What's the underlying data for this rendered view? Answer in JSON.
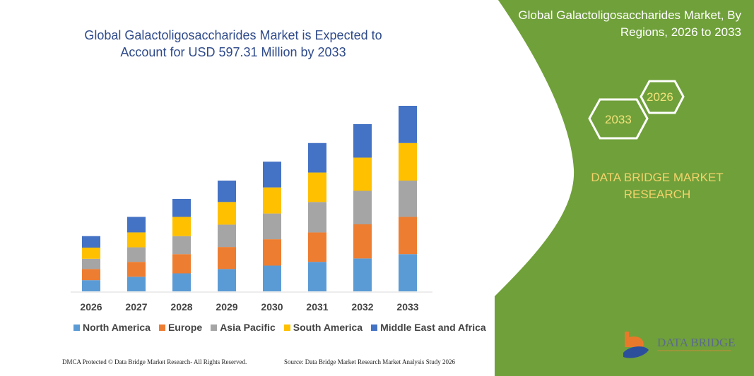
{
  "chart_data": {
    "type": "bar",
    "stacked": true,
    "title": "Global Galactoligosaccharides Market is Expected to Account for USD 597.31 Million by 2033",
    "categories": [
      "2026",
      "2027",
      "2028",
      "2029",
      "2030",
      "2031",
      "2032",
      "2033"
    ],
    "series": [
      {
        "name": "North America",
        "color": "#5b9bd5",
        "values": [
          36,
          47,
          58,
          72,
          83,
          95,
          106,
          120
        ]
      },
      {
        "name": "Europe",
        "color": "#ed7d31",
        "values": [
          36,
          48,
          62,
          71,
          85,
          95,
          110,
          120
        ]
      },
      {
        "name": "Asia Pacific",
        "color": "#a5a5a5",
        "values": [
          33,
          47,
          58,
          72,
          83,
          98,
          108,
          117
        ]
      },
      {
        "name": "South America",
        "color": "#ffc000",
        "values": [
          36,
          48,
          62,
          73,
          84,
          95,
          107,
          121
        ]
      },
      {
        "name": "Middle East and Africa",
        "color": "#4472c4",
        "values": [
          37,
          50,
          58,
          69,
          83,
          95,
          108,
          120
        ]
      }
    ],
    "ylim": [
      0,
      600
    ],
    "grid": false,
    "legend": "bottom"
  },
  "side_panel": {
    "title": "Global Galactoligosaccharides Market, By Regions, 2026 to 2033",
    "hex_start": "2026",
    "hex_end": "2033",
    "brand": "DATA BRIDGE MARKET RESEARCH",
    "color": "#70a03a"
  },
  "logo": {
    "text": "DATA BRIDGE"
  },
  "footer": {
    "copyright": "DMCA Protected © Data Bridge Market Research- All Rights Reserved.",
    "source": "Source: Data Bridge Market Research Market Analysis Study 2026"
  }
}
